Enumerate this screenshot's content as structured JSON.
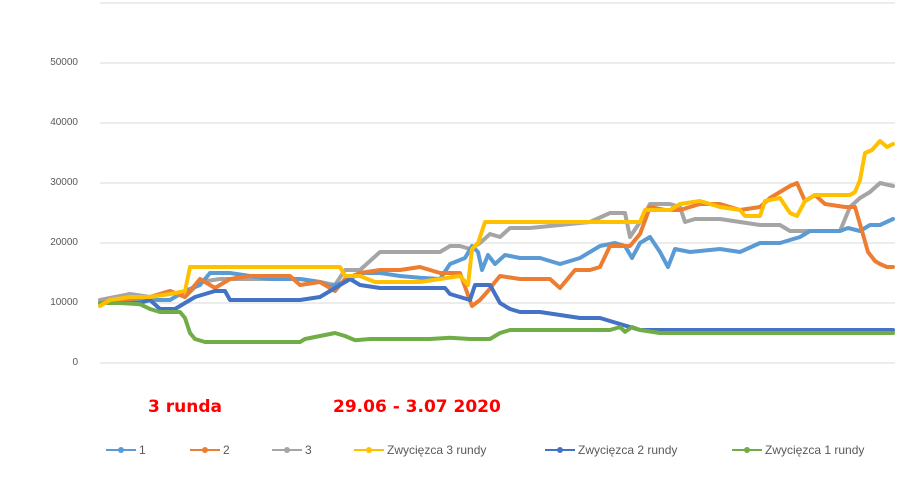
{
  "chart_data": {
    "type": "line",
    "title": "",
    "xlabel": "",
    "ylabel": "",
    "ylim": [
      0,
      60000
    ],
    "yticks": [
      "0",
      "10000",
      "20000",
      "30000",
      "40000",
      "50000"
    ],
    "grid": true,
    "legend_position": "bottom",
    "annotations": [
      "3 runda",
      "29.06 - 3.07 2020"
    ],
    "series": [
      {
        "name": "1",
        "color": "#5b9bd5",
        "points": [
          [
            100,
            10000
          ],
          [
            120,
            10200
          ],
          [
            150,
            10500
          ],
          [
            170,
            10500
          ],
          [
            185,
            12000
          ],
          [
            200,
            13000
          ],
          [
            210,
            15000
          ],
          [
            230,
            15000
          ],
          [
            250,
            14500
          ],
          [
            270,
            14000
          ],
          [
            300,
            14000
          ],
          [
            320,
            13500
          ],
          [
            330,
            12800
          ],
          [
            345,
            13500
          ],
          [
            360,
            15000
          ],
          [
            380,
            15000
          ],
          [
            400,
            14500
          ],
          [
            420,
            14200
          ],
          [
            440,
            14000
          ],
          [
            450,
            16500
          ],
          [
            465,
            17500
          ],
          [
            472,
            19500
          ],
          [
            478,
            18500
          ],
          [
            482,
            15500
          ],
          [
            488,
            18000
          ],
          [
            495,
            16500
          ],
          [
            505,
            18000
          ],
          [
            520,
            17500
          ],
          [
            540,
            17500
          ],
          [
            560,
            16500
          ],
          [
            580,
            17500
          ],
          [
            600,
            19500
          ],
          [
            615,
            20000
          ],
          [
            625,
            19500
          ],
          [
            632,
            17500
          ],
          [
            640,
            20000
          ],
          [
            650,
            21000
          ],
          [
            660,
            18500
          ],
          [
            668,
            16000
          ],
          [
            675,
            19000
          ],
          [
            690,
            18500
          ],
          [
            720,
            19000
          ],
          [
            740,
            18500
          ],
          [
            760,
            20000
          ],
          [
            780,
            20000
          ],
          [
            800,
            21000
          ],
          [
            810,
            22000
          ],
          [
            820,
            22000
          ],
          [
            840,
            22000
          ],
          [
            848,
            22500
          ],
          [
            860,
            22000
          ],
          [
            870,
            23000
          ],
          [
            880,
            23000
          ],
          [
            893,
            24000
          ]
        ]
      },
      {
        "name": "2",
        "color": "#ed7d31",
        "points": [
          [
            100,
            10000
          ],
          [
            120,
            10500
          ],
          [
            150,
            11000
          ],
          [
            170,
            12000
          ],
          [
            185,
            11000
          ],
          [
            200,
            14000
          ],
          [
            215,
            12500
          ],
          [
            230,
            14000
          ],
          [
            250,
            14500
          ],
          [
            270,
            14500
          ],
          [
            290,
            14500
          ],
          [
            300,
            13000
          ],
          [
            320,
            13500
          ],
          [
            335,
            12000
          ],
          [
            345,
            14000
          ],
          [
            360,
            15000
          ],
          [
            380,
            15500
          ],
          [
            400,
            15500
          ],
          [
            420,
            16000
          ],
          [
            440,
            15000
          ],
          [
            460,
            15000
          ],
          [
            472,
            9500
          ],
          [
            480,
            10500
          ],
          [
            488,
            12000
          ],
          [
            495,
            13500
          ],
          [
            500,
            14500
          ],
          [
            520,
            14000
          ],
          [
            550,
            14000
          ],
          [
            560,
            12500
          ],
          [
            575,
            15500
          ],
          [
            590,
            15500
          ],
          [
            600,
            16000
          ],
          [
            610,
            19500
          ],
          [
            630,
            19500
          ],
          [
            640,
            21500
          ],
          [
            650,
            26000
          ],
          [
            665,
            25500
          ],
          [
            680,
            25500
          ],
          [
            700,
            26500
          ],
          [
            720,
            26500
          ],
          [
            740,
            25500
          ],
          [
            760,
            26000
          ],
          [
            770,
            27500
          ],
          [
            780,
            28500
          ],
          [
            790,
            29500
          ],
          [
            797,
            30000
          ],
          [
            805,
            27000
          ],
          [
            815,
            28000
          ],
          [
            825,
            26500
          ],
          [
            845,
            26000
          ],
          [
            855,
            26000
          ],
          [
            862,
            22000
          ],
          [
            868,
            18500
          ],
          [
            875,
            17000
          ],
          [
            880,
            16500
          ],
          [
            887,
            16000
          ],
          [
            893,
            16000
          ]
        ]
      },
      {
        "name": "3",
        "color": "#a5a5a5",
        "points": [
          [
            100,
            10500
          ],
          [
            115,
            11000
          ],
          [
            130,
            11500
          ],
          [
            150,
            11000
          ],
          [
            170,
            12000
          ],
          [
            185,
            11000
          ],
          [
            200,
            13500
          ],
          [
            220,
            14000
          ],
          [
            240,
            14000
          ],
          [
            260,
            14000
          ],
          [
            280,
            14000
          ],
          [
            300,
            14000
          ],
          [
            320,
            13500
          ],
          [
            335,
            13000
          ],
          [
            345,
            15500
          ],
          [
            360,
            15500
          ],
          [
            380,
            18500
          ],
          [
            400,
            18500
          ],
          [
            420,
            18500
          ],
          [
            440,
            18500
          ],
          [
            450,
            19500
          ],
          [
            460,
            19500
          ],
          [
            470,
            19000
          ],
          [
            480,
            20000
          ],
          [
            490,
            21500
          ],
          [
            500,
            21000
          ],
          [
            510,
            22500
          ],
          [
            530,
            22500
          ],
          [
            560,
            23000
          ],
          [
            590,
            23500
          ],
          [
            610,
            25000
          ],
          [
            625,
            25000
          ],
          [
            630,
            21000
          ],
          [
            640,
            23500
          ],
          [
            650,
            26500
          ],
          [
            670,
            26500
          ],
          [
            680,
            26000
          ],
          [
            685,
            23500
          ],
          [
            695,
            24000
          ],
          [
            720,
            24000
          ],
          [
            740,
            23500
          ],
          [
            760,
            23000
          ],
          [
            780,
            23000
          ],
          [
            790,
            22000
          ],
          [
            810,
            22000
          ],
          [
            830,
            22000
          ],
          [
            840,
            22000
          ],
          [
            850,
            26000
          ],
          [
            860,
            27500
          ],
          [
            870,
            28500
          ],
          [
            880,
            30000
          ],
          [
            893,
            29500
          ]
        ]
      },
      {
        "name": "Zwycięzca 3 rundy",
        "color": "#ffc000",
        "points": [
          [
            100,
            9500
          ],
          [
            110,
            10500
          ],
          [
            130,
            11000
          ],
          [
            150,
            11000
          ],
          [
            170,
            11500
          ],
          [
            185,
            12000
          ],
          [
            190,
            16000
          ],
          [
            210,
            16000
          ],
          [
            250,
            16000
          ],
          [
            300,
            16000
          ],
          [
            340,
            16000
          ],
          [
            345,
            14500
          ],
          [
            360,
            14500
          ],
          [
            375,
            13500
          ],
          [
            400,
            13500
          ],
          [
            420,
            13500
          ],
          [
            440,
            14000
          ],
          [
            460,
            14500
          ],
          [
            468,
            13000
          ],
          [
            472,
            19000
          ],
          [
            478,
            20000
          ],
          [
            485,
            23500
          ],
          [
            520,
            23500
          ],
          [
            560,
            23500
          ],
          [
            600,
            23500
          ],
          [
            640,
            23500
          ],
          [
            645,
            25500
          ],
          [
            670,
            25500
          ],
          [
            680,
            26500
          ],
          [
            700,
            27000
          ],
          [
            720,
            26000
          ],
          [
            740,
            25500
          ],
          [
            745,
            24500
          ],
          [
            760,
            24500
          ],
          [
            765,
            27000
          ],
          [
            780,
            27500
          ],
          [
            790,
            25000
          ],
          [
            797,
            24500
          ],
          [
            805,
            27000
          ],
          [
            815,
            28000
          ],
          [
            850,
            28000
          ],
          [
            855,
            28500
          ],
          [
            860,
            30500
          ],
          [
            865,
            35000
          ],
          [
            872,
            35500
          ],
          [
            880,
            37000
          ],
          [
            887,
            36000
          ],
          [
            893,
            36500
          ]
        ]
      },
      {
        "name": "Zwycięzca 2 rundy",
        "color": "#4472c4",
        "points": [
          [
            100,
            10000
          ],
          [
            120,
            10000
          ],
          [
            140,
            10000
          ],
          [
            150,
            10500
          ],
          [
            160,
            9000
          ],
          [
            175,
            9000
          ],
          [
            185,
            10000
          ],
          [
            195,
            11000
          ],
          [
            205,
            11500
          ],
          [
            215,
            12000
          ],
          [
            225,
            12000
          ],
          [
            230,
            10500
          ],
          [
            250,
            10500
          ],
          [
            280,
            10500
          ],
          [
            300,
            10500
          ],
          [
            320,
            11000
          ],
          [
            335,
            12500
          ],
          [
            350,
            14000
          ],
          [
            360,
            13000
          ],
          [
            380,
            12500
          ],
          [
            420,
            12500
          ],
          [
            445,
            12500
          ],
          [
            450,
            11500
          ],
          [
            460,
            11000
          ],
          [
            470,
            10500
          ],
          [
            475,
            13000
          ],
          [
            490,
            13000
          ],
          [
            500,
            10000
          ],
          [
            510,
            9000
          ],
          [
            520,
            8500
          ],
          [
            540,
            8500
          ],
          [
            560,
            8000
          ],
          [
            580,
            7500
          ],
          [
            600,
            7500
          ],
          [
            620,
            6500
          ],
          [
            640,
            5500
          ],
          [
            700,
            5500
          ],
          [
            800,
            5500
          ],
          [
            893,
            5500
          ]
        ]
      },
      {
        "name": "Zwycięzca 1 rundy",
        "color": "#70ad47",
        "points": [
          [
            100,
            10000
          ],
          [
            120,
            10000
          ],
          [
            140,
            9800
          ],
          [
            150,
            9000
          ],
          [
            160,
            8500
          ],
          [
            170,
            8500
          ],
          [
            180,
            8500
          ],
          [
            185,
            7500
          ],
          [
            190,
            5000
          ],
          [
            195,
            4000
          ],
          [
            205,
            3500
          ],
          [
            230,
            3500
          ],
          [
            270,
            3500
          ],
          [
            300,
            3500
          ],
          [
            305,
            4000
          ],
          [
            320,
            4500
          ],
          [
            335,
            5000
          ],
          [
            345,
            4500
          ],
          [
            355,
            3800
          ],
          [
            370,
            4000
          ],
          [
            400,
            4000
          ],
          [
            430,
            4000
          ],
          [
            450,
            4200
          ],
          [
            470,
            4000
          ],
          [
            490,
            4000
          ],
          [
            500,
            5000
          ],
          [
            510,
            5500
          ],
          [
            540,
            5500
          ],
          [
            580,
            5500
          ],
          [
            610,
            5500
          ],
          [
            620,
            6000
          ],
          [
            625,
            5200
          ],
          [
            632,
            6000
          ],
          [
            640,
            5500
          ],
          [
            660,
            5000
          ],
          [
            700,
            5000
          ],
          [
            800,
            5000
          ],
          [
            893,
            5000
          ]
        ]
      }
    ]
  },
  "axis": {
    "yticks": [
      {
        "label": "50000"
      },
      {
        "label": "40000"
      },
      {
        "label": "30000"
      },
      {
        "label": "20000"
      },
      {
        "label": "10000"
      },
      {
        "label": "0"
      }
    ]
  },
  "annotations": {
    "round": "3 runda",
    "dates": "29.06 - 3.07 2020"
  },
  "legend": [
    {
      "label": "1",
      "color": "#5b9bd5"
    },
    {
      "label": "2",
      "color": "#ed7d31"
    },
    {
      "label": "3",
      "color": "#a5a5a5"
    },
    {
      "label": "Zwycięzca 3 rundy",
      "color": "#ffc000"
    },
    {
      "label": "Zwycięzca 2 rundy",
      "color": "#4472c4"
    },
    {
      "label": "Zwycięzca 1 rundy",
      "color": "#70ad47"
    }
  ]
}
